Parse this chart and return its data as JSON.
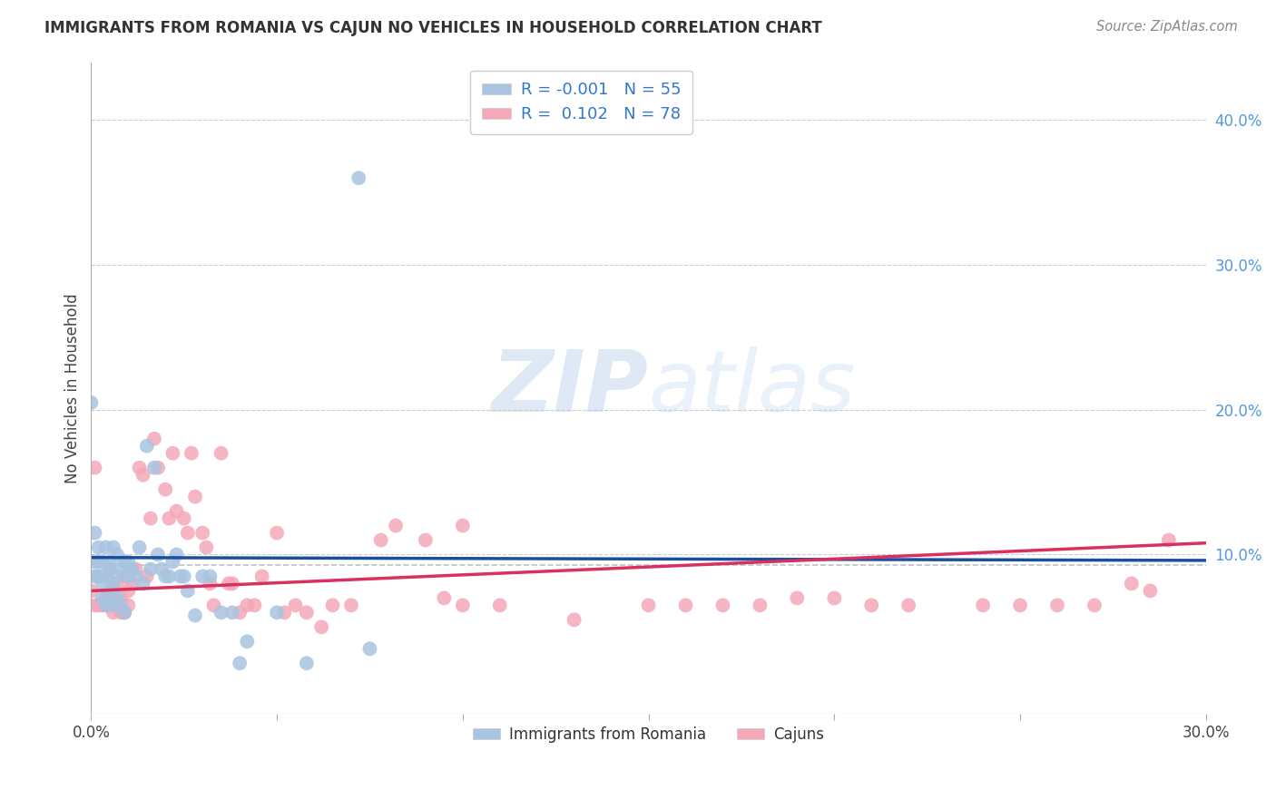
{
  "title": "IMMIGRANTS FROM ROMANIA VS CAJUN NO VEHICLES IN HOUSEHOLD CORRELATION CHART",
  "source": "Source: ZipAtlas.com",
  "ylabel": "No Vehicles in Household",
  "xmin": 0.0,
  "xmax": 0.3,
  "ymin": -0.01,
  "ymax": 0.44,
  "yticks_right": [
    0.1,
    0.2,
    0.3,
    0.4
  ],
  "ytick_labels_right": [
    "10.0%",
    "20.0%",
    "30.0%",
    "40.0%"
  ],
  "xticks": [
    0.0,
    0.05,
    0.1,
    0.15,
    0.2,
    0.25,
    0.3
  ],
  "xtick_labels": [
    "0.0%",
    "",
    "",
    "",
    "",
    "",
    "30.0%"
  ],
  "grid_color": "#cccccc",
  "background_color": "#ffffff",
  "legend_R1": "-0.001",
  "legend_N1": "55",
  "legend_R2": "0.102",
  "legend_N2": "78",
  "series1_color": "#a8c4e0",
  "series2_color": "#f4a8b8",
  "trendline1_color": "#1a4fa0",
  "trendline2_color": "#d93060",
  "refline_color": "#bbbbbb",
  "refline_y": 0.093,
  "trendline1_x0": 0.0,
  "trendline1_y0": 0.098,
  "trendline1_x1": 0.3,
  "trendline1_y1": 0.096,
  "trendline2_x0": 0.0,
  "trendline2_y0": 0.075,
  "trendline2_x1": 0.3,
  "trendline2_y1": 0.108,
  "series1_x": [
    0.0,
    0.001,
    0.001,
    0.001,
    0.002,
    0.002,
    0.002,
    0.003,
    0.003,
    0.003,
    0.004,
    0.004,
    0.004,
    0.005,
    0.005,
    0.005,
    0.006,
    0.006,
    0.006,
    0.007,
    0.007,
    0.007,
    0.008,
    0.008,
    0.009,
    0.009,
    0.01,
    0.01,
    0.011,
    0.012,
    0.013,
    0.014,
    0.015,
    0.016,
    0.017,
    0.018,
    0.019,
    0.02,
    0.021,
    0.022,
    0.023,
    0.024,
    0.025,
    0.026,
    0.028,
    0.03,
    0.032,
    0.035,
    0.038,
    0.04,
    0.042,
    0.05,
    0.058,
    0.075,
    0.072
  ],
  "series1_y": [
    0.205,
    0.115,
    0.095,
    0.085,
    0.105,
    0.095,
    0.085,
    0.095,
    0.08,
    0.07,
    0.105,
    0.085,
    0.065,
    0.095,
    0.09,
    0.075,
    0.105,
    0.08,
    0.065,
    0.1,
    0.085,
    0.07,
    0.09,
    0.065,
    0.095,
    0.06,
    0.095,
    0.085,
    0.09,
    0.085,
    0.105,
    0.08,
    0.175,
    0.09,
    0.16,
    0.1,
    0.09,
    0.085,
    0.085,
    0.095,
    0.1,
    0.085,
    0.085,
    0.075,
    0.058,
    0.085,
    0.085,
    0.06,
    0.06,
    0.025,
    0.04,
    0.06,
    0.025,
    0.035,
    0.36
  ],
  "series2_x": [
    0.0,
    0.001,
    0.001,
    0.002,
    0.002,
    0.003,
    0.003,
    0.004,
    0.004,
    0.005,
    0.005,
    0.006,
    0.006,
    0.007,
    0.007,
    0.008,
    0.008,
    0.009,
    0.009,
    0.01,
    0.01,
    0.011,
    0.012,
    0.013,
    0.014,
    0.015,
    0.016,
    0.017,
    0.018,
    0.02,
    0.021,
    0.022,
    0.023,
    0.025,
    0.026,
    0.027,
    0.028,
    0.03,
    0.031,
    0.032,
    0.033,
    0.035,
    0.037,
    0.038,
    0.04,
    0.042,
    0.044,
    0.046,
    0.05,
    0.052,
    0.055,
    0.058,
    0.062,
    0.065,
    0.07,
    0.078,
    0.082,
    0.09,
    0.095,
    0.1,
    0.11,
    0.13,
    0.15,
    0.16,
    0.17,
    0.18,
    0.19,
    0.2,
    0.21,
    0.22,
    0.24,
    0.25,
    0.26,
    0.27,
    0.28,
    0.285,
    0.29,
    0.1
  ],
  "series2_y": [
    0.075,
    0.16,
    0.065,
    0.085,
    0.065,
    0.085,
    0.065,
    0.07,
    0.065,
    0.09,
    0.065,
    0.075,
    0.06,
    0.08,
    0.065,
    0.07,
    0.06,
    0.085,
    0.06,
    0.075,
    0.065,
    0.08,
    0.09,
    0.16,
    0.155,
    0.085,
    0.125,
    0.18,
    0.16,
    0.145,
    0.125,
    0.17,
    0.13,
    0.125,
    0.115,
    0.17,
    0.14,
    0.115,
    0.105,
    0.08,
    0.065,
    0.17,
    0.08,
    0.08,
    0.06,
    0.065,
    0.065,
    0.085,
    0.115,
    0.06,
    0.065,
    0.06,
    0.05,
    0.065,
    0.065,
    0.11,
    0.12,
    0.11,
    0.07,
    0.065,
    0.065,
    0.055,
    0.065,
    0.065,
    0.065,
    0.065,
    0.07,
    0.07,
    0.065,
    0.065,
    0.065,
    0.065,
    0.065,
    0.065,
    0.08,
    0.075,
    0.11,
    0.12
  ]
}
